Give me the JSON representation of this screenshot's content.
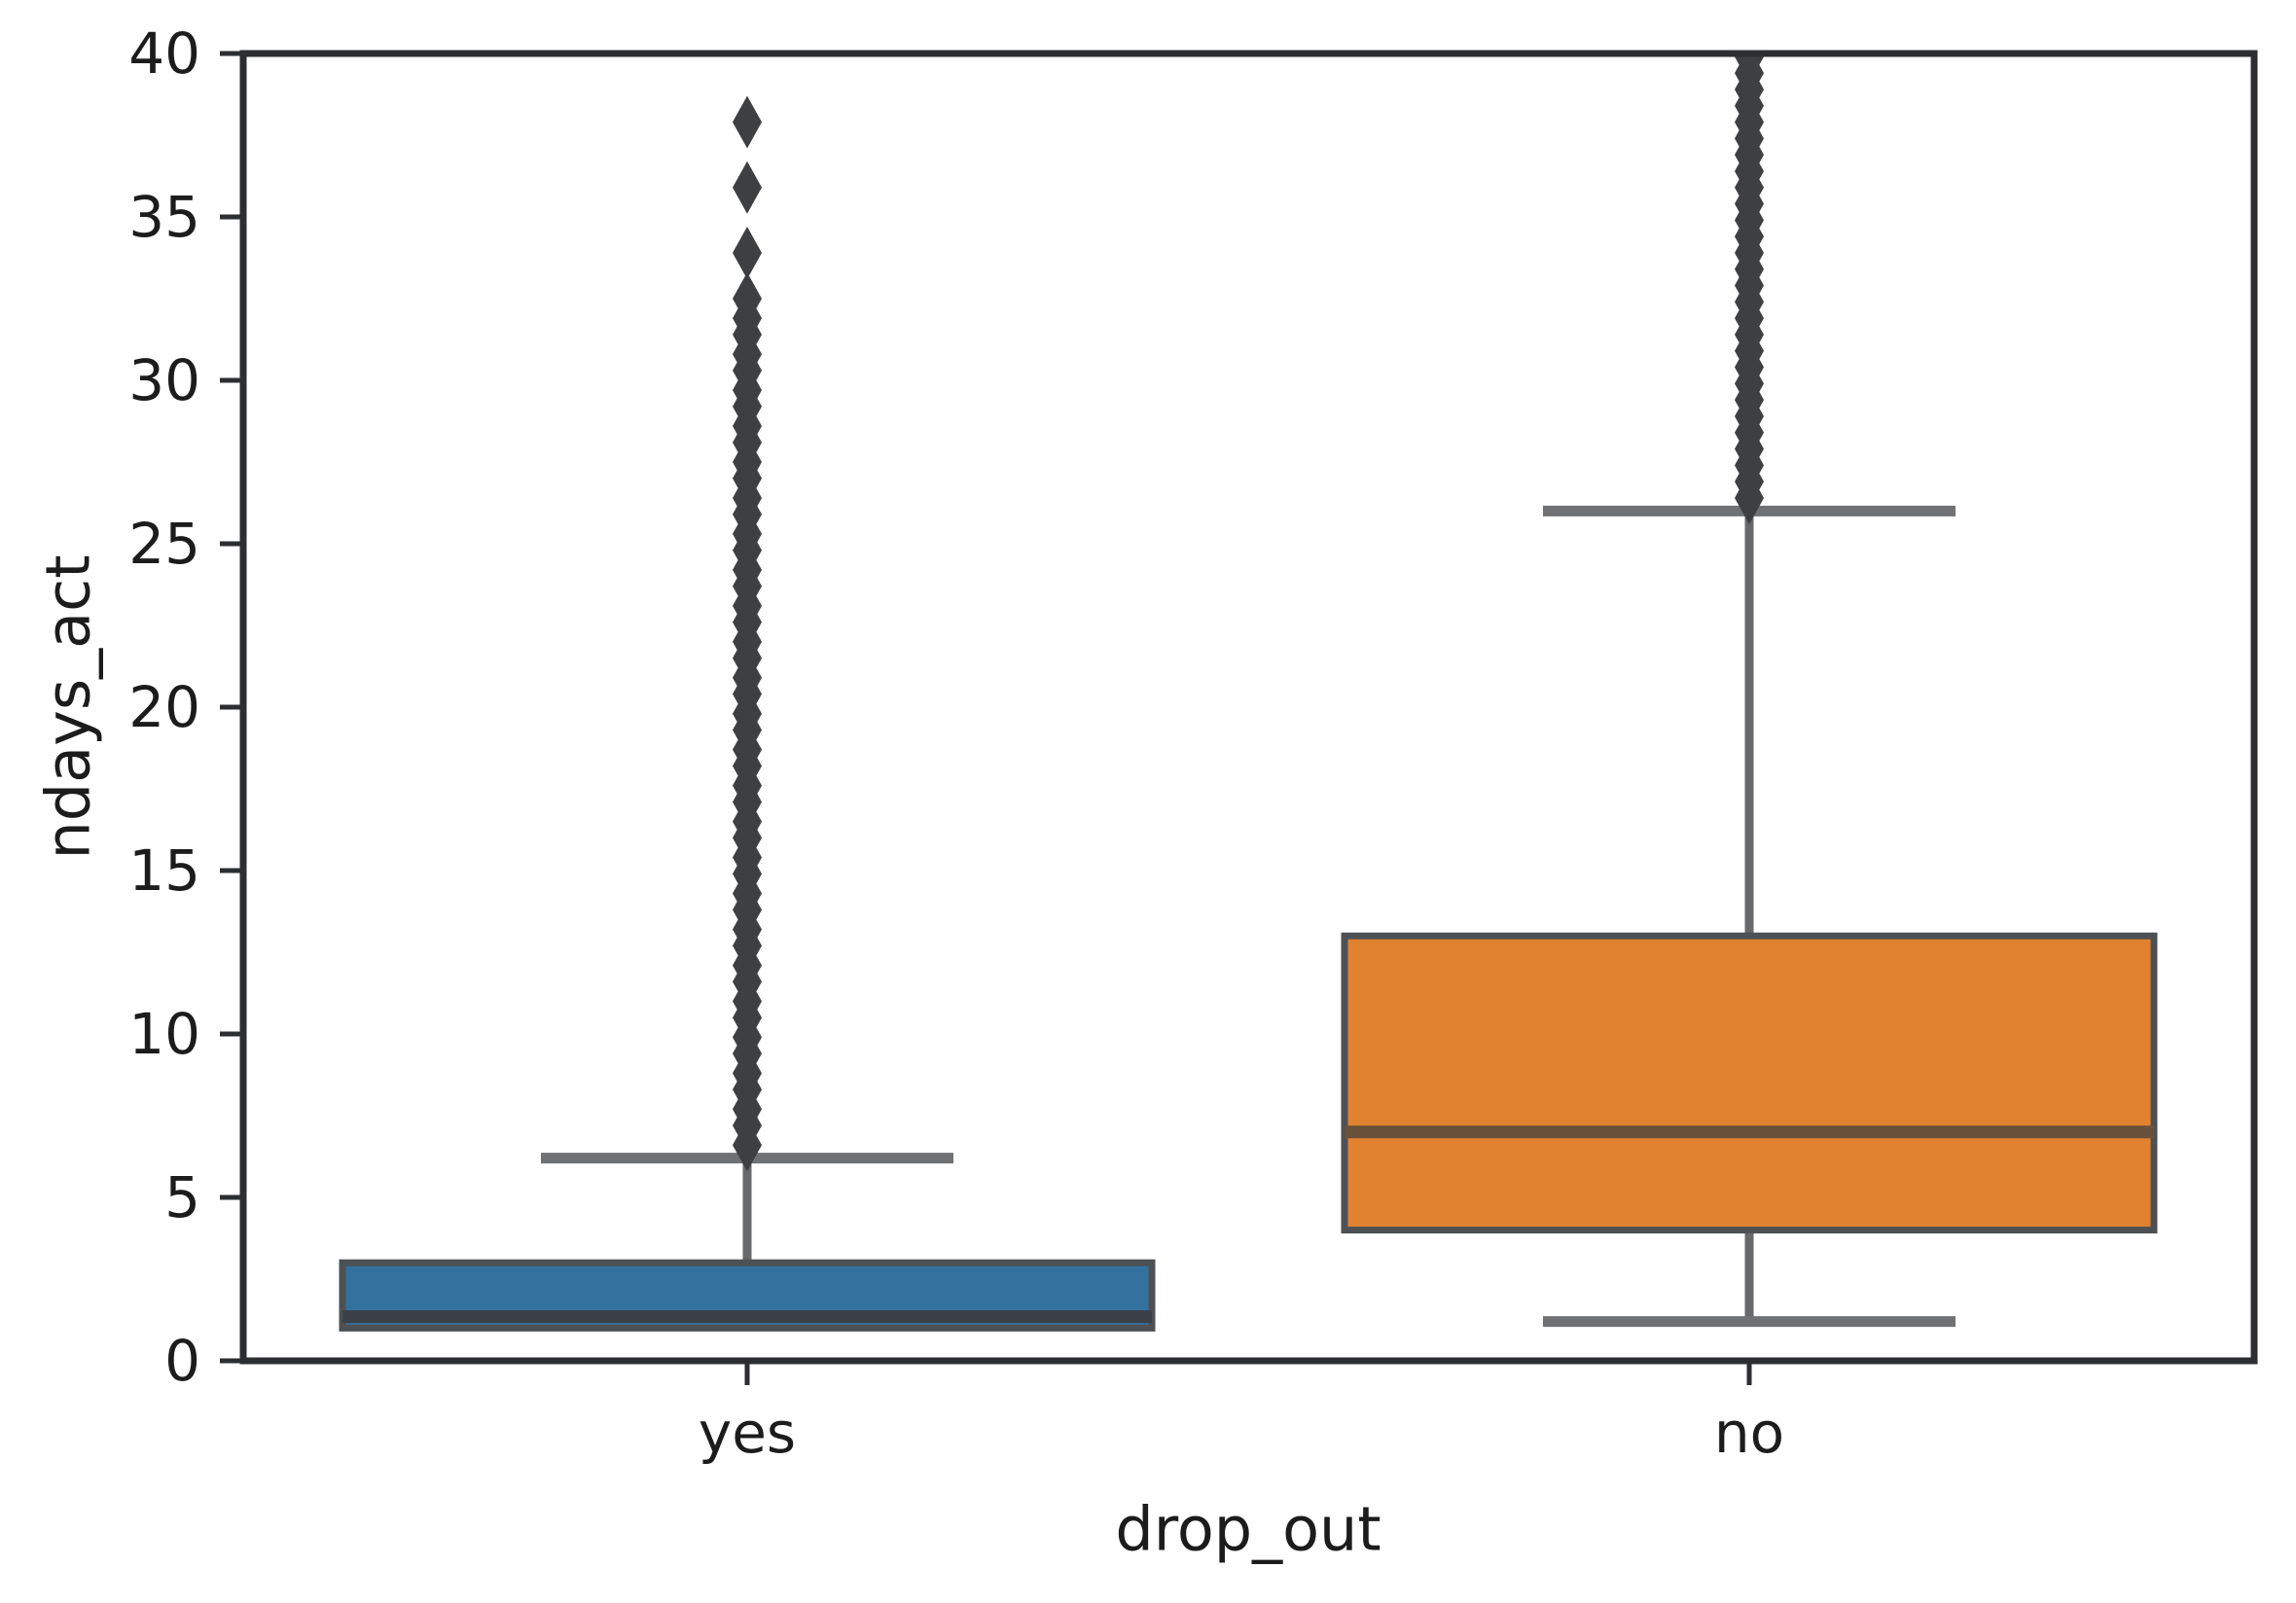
{
  "figure": {
    "background": "#ffffff",
    "xlabel": "drop_out",
    "ylabel": "ndays_act"
  },
  "chart_data": {
    "type": "box",
    "title": "",
    "xlabel": "drop_out",
    "ylabel": "ndays_act",
    "categories": [
      "yes",
      "no"
    ],
    "ylim": [
      0,
      40
    ],
    "yticks": [
      0,
      5,
      10,
      15,
      20,
      25,
      30,
      35,
      40
    ],
    "grid": false,
    "legend": null,
    "groups": [
      {
        "category": "yes",
        "fill_color": "#33719f",
        "median_color": "#3a4045",
        "q1": 1,
        "median": 1.35,
        "q3": 3,
        "whisker_low": null,
        "whisker_high": 6.2,
        "outliers": [
          6.6,
          7.2,
          7.7,
          8.3,
          8.8,
          9.4,
          9.9,
          10.5,
          11.0,
          11.6,
          12.1,
          12.7,
          13.2,
          13.8,
          14.3,
          14.9,
          15.4,
          16.0,
          16.5,
          17.1,
          17.6,
          18.2,
          18.7,
          19.3,
          19.8,
          20.4,
          20.9,
          21.5,
          22.0,
          22.6,
          23.1,
          23.7,
          24.2,
          24.8,
          25.3,
          25.9,
          26.4,
          27.0,
          27.5,
          28.1,
          28.6,
          29.2,
          29.7,
          30.3,
          30.8,
          31.4,
          31.9,
          32.5,
          33.9,
          35.9,
          37.9
        ]
      },
      {
        "category": "no",
        "fill_color": "#e08230",
        "median_color": "#6a513c",
        "q1": 4,
        "median": 7,
        "q3": 13,
        "whisker_low": 1.2,
        "whisker_high": 26,
        "outliers": [
          26.4,
          26.9,
          27.4,
          27.9,
          28.4,
          28.9,
          29.4,
          29.9,
          30.4,
          30.9,
          31.4,
          31.9,
          32.4,
          32.9,
          33.4,
          33.9,
          34.4,
          34.9,
          35.4,
          35.9,
          36.4,
          36.9,
          37.4,
          37.9,
          38.4,
          38.9,
          39.4,
          39.9,
          40.4
        ]
      }
    ],
    "styles": {
      "box_edge_color": "#4e5154",
      "whisker_color": "#66686a",
      "cap_color": "#6f7173",
      "outlier_color": "#3d3f41",
      "spine_color": "#2c2e30",
      "tick_color": "#2c2e30",
      "text_color": "#1c1c1c"
    }
  }
}
